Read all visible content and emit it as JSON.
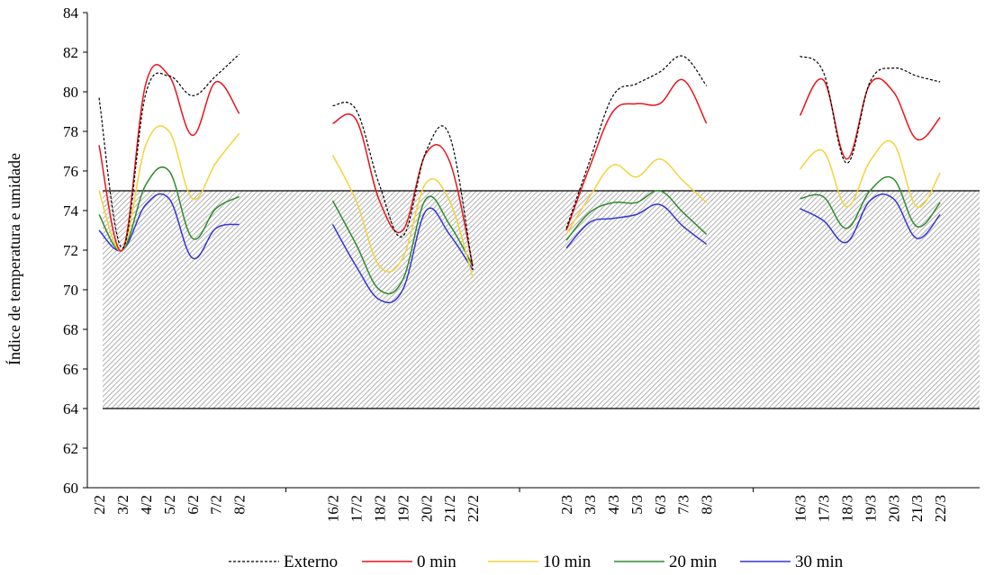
{
  "chart_data": {
    "type": "line",
    "ylabel": "Índice de temperatura e umidade",
    "xlabel": "",
    "ylim": [
      60,
      84
    ],
    "yticks": [
      60,
      62,
      64,
      66,
      68,
      70,
      72,
      74,
      76,
      78,
      80,
      82,
      84
    ],
    "grid": false,
    "legend_position": "bottom",
    "comfort_band": {
      "y_min": 64,
      "y_max": 75,
      "pattern": "diagonal-hatch"
    },
    "groups": [
      {
        "categories": [
          "2/2",
          "3/2",
          "4/2",
          "5/2",
          "6/2",
          "7/2",
          "8/2"
        ],
        "series": [
          {
            "name": "Externo",
            "values": [
              79.7,
              72.1,
              79.9,
              80.8,
              79.8,
              80.8,
              81.9
            ]
          },
          {
            "name": "0 min",
            "values": [
              77.3,
              72.0,
              80.4,
              80.8,
              77.8,
              80.5,
              78.9
            ]
          },
          {
            "name": "10 min",
            "values": [
              75.0,
              72.0,
              77.3,
              78.0,
              74.6,
              76.4,
              77.9
            ]
          },
          {
            "name": "20 min",
            "values": [
              73.8,
              72.0,
              75.3,
              76.0,
              72.6,
              74.1,
              74.7
            ]
          },
          {
            "name": "30 min",
            "values": [
              73.0,
              72.0,
              74.3,
              74.6,
              71.6,
              73.1,
              73.3
            ]
          }
        ]
      },
      {
        "categories": [
          "16/2",
          "17/2",
          "18/2",
          "19/2",
          "20/2",
          "21/2",
          "22/2"
        ],
        "series": [
          {
            "name": "Externo",
            "values": [
              79.3,
              79.1,
              75.3,
              72.7,
              77.0,
              77.8,
              71.0
            ]
          },
          {
            "name": "0 min",
            "values": [
              78.4,
              78.6,
              74.5,
              73.0,
              76.9,
              76.5,
              71.2
            ]
          },
          {
            "name": "10 min",
            "values": [
              76.8,
              74.5,
              71.2,
              71.6,
              75.4,
              74.5,
              70.6
            ]
          },
          {
            "name": "20 min",
            "values": [
              74.5,
              72.3,
              70.0,
              70.5,
              74.6,
              73.3,
              71.2
            ]
          },
          {
            "name": "30 min",
            "values": [
              73.3,
              71.2,
              69.5,
              70.0,
              74.0,
              72.8,
              71.0
            ]
          }
        ]
      },
      {
        "categories": [
          "2/3",
          "3/3",
          "4/3",
          "5/3",
          "6/3",
          "7/3",
          "8/3"
        ],
        "series": [
          {
            "name": "Externo",
            "values": [
              73.1,
              76.5,
              79.8,
              80.4,
              81.0,
              81.8,
              80.3
            ]
          },
          {
            "name": "0 min",
            "values": [
              73.0,
              76.2,
              79.0,
              79.4,
              79.4,
              80.6,
              78.4
            ]
          },
          {
            "name": "10 min",
            "values": [
              72.8,
              74.7,
              76.3,
              75.7,
              76.6,
              75.5,
              74.4
            ]
          },
          {
            "name": "20 min",
            "values": [
              72.5,
              73.9,
              74.4,
              74.4,
              75.0,
              73.9,
              72.8
            ]
          },
          {
            "name": "30 min",
            "values": [
              72.1,
              73.4,
              73.6,
              73.8,
              74.3,
              73.2,
              72.3
            ]
          }
        ]
      },
      {
        "categories": [
          "16/3",
          "17/3",
          "18/3",
          "19/3",
          "20/3",
          "21/3",
          "22/3"
        ],
        "series": [
          {
            "name": "Externo",
            "values": [
              81.8,
              81.0,
              76.4,
              80.5,
              81.2,
              80.8,
              80.5
            ]
          },
          {
            "name": "0 min",
            "values": [
              78.8,
              80.6,
              76.6,
              80.4,
              80.0,
              77.6,
              78.7
            ]
          },
          {
            "name": "10 min",
            "values": [
              76.1,
              77.0,
              74.2,
              76.5,
              77.4,
              74.2,
              75.9
            ]
          },
          {
            "name": "20 min",
            "values": [
              74.6,
              74.7,
              73.1,
              75.0,
              75.6,
              73.2,
              74.4
            ]
          },
          {
            "name": "30 min",
            "values": [
              74.1,
              73.5,
              72.4,
              74.5,
              74.6,
              72.6,
              73.8
            ]
          }
        ]
      }
    ],
    "legend": [
      {
        "name": "Externo",
        "color": "#000000",
        "dashed": true
      },
      {
        "name": "0 min",
        "color": "#e8141b",
        "dashed": false
      },
      {
        "name": "10 min",
        "color": "#f4d23a",
        "dashed": false
      },
      {
        "name": "20 min",
        "color": "#2e8b2e",
        "dashed": false
      },
      {
        "name": "30 min",
        "color": "#3535d6",
        "dashed": false
      }
    ]
  }
}
